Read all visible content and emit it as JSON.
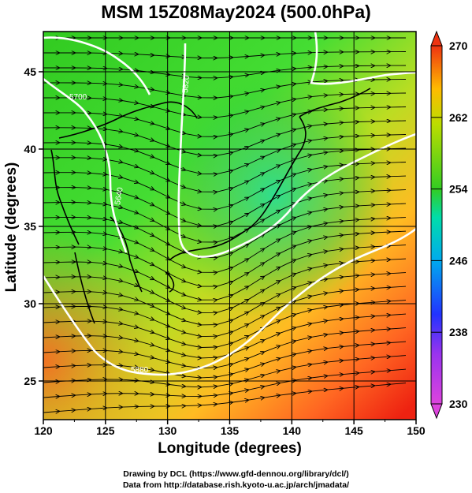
{
  "title": "MSM 15Z08May2024 (500.0hPa)",
  "xlabel": "Longitude (degrees)",
  "ylabel": "Latitude  (degrees)",
  "credits": [
    "Drawing by DCL (https://www.gfd-dennou.org/library/dcl/)",
    "Data from http://database.rish.kyoto-u.ac.jp/arch/jmadata/"
  ],
  "x_ticks": [
    "120",
    "125",
    "130",
    "135",
    "140",
    "145",
    "150"
  ],
  "y_ticks": [
    "25",
    "30",
    "35",
    "40",
    "45"
  ],
  "colorbar": {
    "labels": [
      "270",
      "262",
      "254",
      "246",
      "238",
      "230"
    ],
    "min": 230,
    "max": 270,
    "colors": [
      "#dd44dd",
      "#2233ff",
      "#00aaee",
      "#00ddaa",
      "#33cc22",
      "#bbdd00",
      "#ffbb00",
      "#ee3311"
    ]
  },
  "contour_labels": [
    "5880",
    "5820",
    "5640",
    "5700"
  ],
  "chart_data": {
    "type": "heatmap",
    "title": "MSM 15Z08May2024 (500.0hPa)",
    "xlabel": "Longitude (degrees)",
    "ylabel": "Latitude  (degrees)",
    "xlim": [
      120,
      150
    ],
    "ylim": [
      22.5,
      47.6
    ],
    "colorbar_range": [
      230,
      270
    ],
    "field_note": "temperature shaded, streamlines of wind, geopotential height contours"
  }
}
